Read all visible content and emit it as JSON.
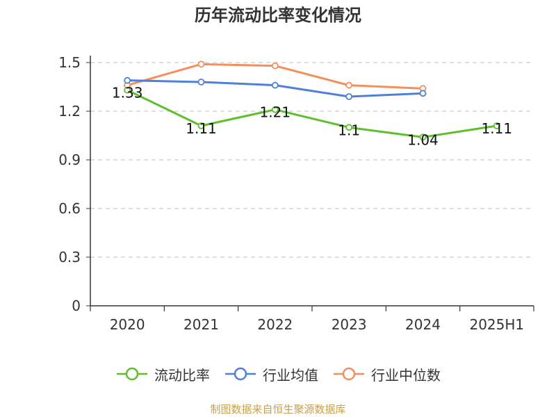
{
  "title": "历年流动比率变化情况",
  "source": "制图数据来自恒生聚源数据库",
  "chart_data": {
    "type": "line",
    "title": "历年流动比率变化情况",
    "categories": [
      "2020",
      "2021",
      "2022",
      "2023",
      "2024",
      "2025H1"
    ],
    "ylim": [
      0,
      1.5
    ],
    "yticks": [
      "0",
      "0.3",
      "0.6",
      "0.9",
      "1.2",
      "1.5"
    ],
    "grid": true,
    "legend_position": "bottom",
    "series": [
      {
        "name": "流动比率",
        "color": "#5cc02c",
        "values": [
          1.33,
          1.11,
          1.21,
          1.1,
          1.04,
          1.11
        ],
        "labels": [
          "1.33",
          "1.11",
          "1.21",
          "1.1",
          "1.04",
          "1.11"
        ],
        "show_labels": true
      },
      {
        "name": "行业均值",
        "color": "#4f80d9",
        "values": [
          1.39,
          1.38,
          1.36,
          1.29,
          1.31,
          null
        ],
        "show_labels": false
      },
      {
        "name": "行业中位数",
        "color": "#f48f5b",
        "values": [
          1.36,
          1.49,
          1.48,
          1.36,
          1.34,
          null
        ],
        "show_labels": false
      }
    ]
  }
}
